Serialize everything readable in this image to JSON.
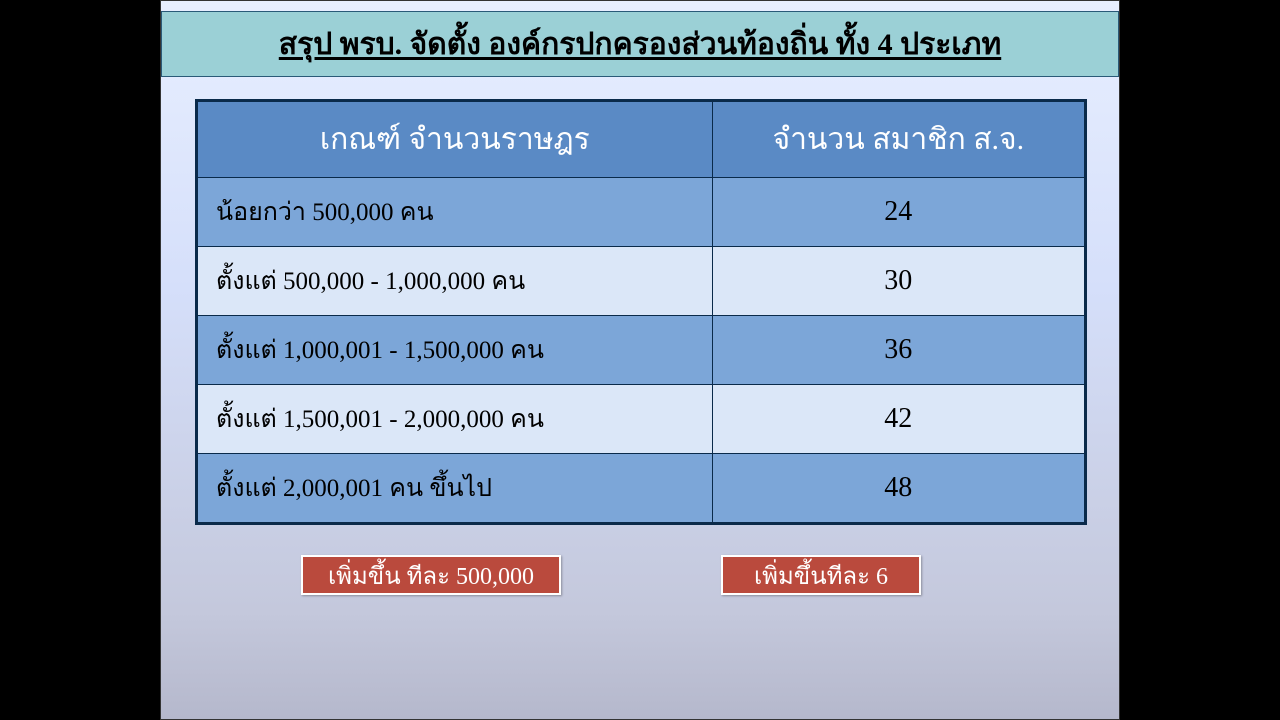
{
  "header": {
    "title": "สรุป พรบ. จัดตั้ง องค์กรปกครองส่วนท้องถิ่น ทั้ง 4 ประเภท"
  },
  "table": {
    "columns": [
      "เกณฑ์ จำนวนราษฎร",
      "จำนวน  สมาชิก ส.จ."
    ],
    "rows": [
      [
        "น้อยกว่า  500,000  คน",
        "24"
      ],
      [
        "ตั้งแต่  500,000   -  1,000,000  คน",
        "30"
      ],
      [
        "ตั้งแต่  1,000,001   -  1,500,000  คน",
        "36"
      ],
      [
        "ตั้งแต่  1,500,001  -  2,000,000  คน",
        "42"
      ],
      [
        "ตั้งแต่  2,000,001   คน  ขึ้นไป",
        "48"
      ]
    ],
    "header_bg": "#5a8ac5",
    "header_fg": "#ffffff",
    "row_colors": [
      "#7ca6d8",
      "#dbe7f8"
    ],
    "border_color": "#0a2a4a",
    "header_fontsize": 30,
    "cell_fontsize": 25
  },
  "callouts": {
    "left": "เพิ่มขึ้น  ทีละ  500,000",
    "right": "เพิ่มขึ้นทีละ 6",
    "bg_color": "#ba4a3d",
    "fg_color": "#ffffff",
    "border_color": "#ffffff"
  },
  "slide": {
    "bg_gradient_top": "#e8efff",
    "bg_gradient_bottom": "#b5b8cc",
    "header_band_bg": "#9bd0d6"
  }
}
